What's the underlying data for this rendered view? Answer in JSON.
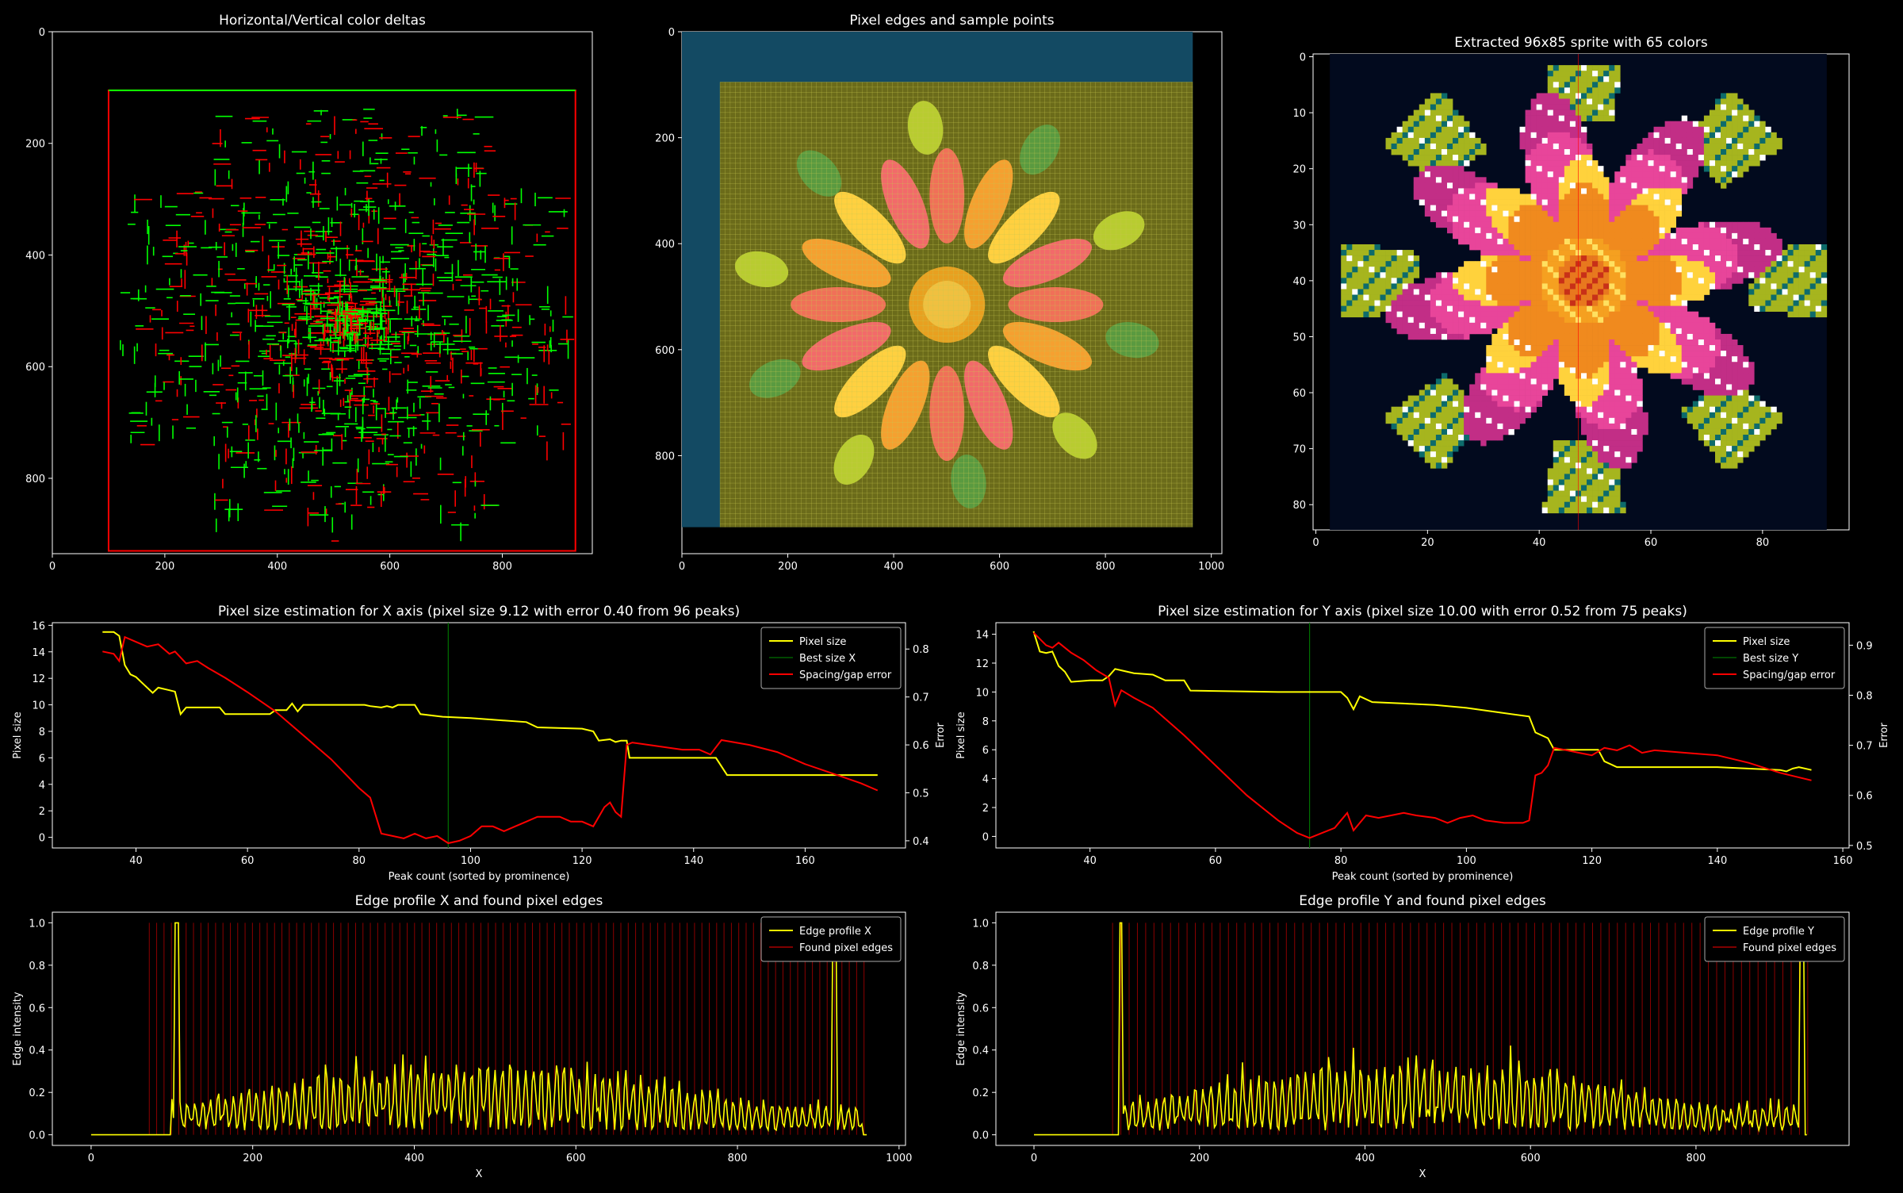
{
  "colors": {
    "background": "#000000",
    "axis": "#ffffff",
    "yellow": "#ffff00",
    "red": "#ff0000",
    "green": "#00ff00",
    "dark_green": "#007000",
    "teal_bg": "#134a63",
    "olive_grid": "#6b6b1a",
    "sprite_bg": "#020a1e",
    "leaf": "#a6b51e",
    "leaf_dark": "#0d6b6b",
    "petal_pink": "#e8459a",
    "petal_orange": "#f08a1e",
    "petal_yellow": "#ffd23c",
    "center": "#e8781e",
    "highlight": "#ffffff"
  },
  "chart_data": [
    {
      "id": "deltas",
      "type": "image",
      "title": "Horizontal/Vertical color deltas",
      "x_ticks": [
        0,
        200,
        400,
        600,
        800
      ],
      "y_ticks": [
        0,
        200,
        400,
        600,
        800
      ],
      "xlim": [
        0,
        960
      ],
      "ylim": [
        0,
        935
      ],
      "frame_rect_data": [
        100,
        105,
        930,
        930
      ]
    },
    {
      "id": "edges",
      "type": "image",
      "title": "Pixel edges and sample points",
      "x_ticks": [
        0,
        200,
        400,
        600,
        800,
        1000
      ],
      "y_ticks": [
        0,
        200,
        400,
        600,
        800
      ],
      "xlim": [
        0,
        1020
      ],
      "ylim": [
        0,
        985
      ],
      "teal_rect_data": [
        0,
        0,
        965,
        935
      ],
      "grid_rect_data": [
        72,
        95,
        965,
        935
      ]
    },
    {
      "id": "sprite",
      "type": "image",
      "title": "Extracted 96x85 sprite with 65 colors",
      "x_ticks": [
        0,
        20,
        40,
        60,
        80
      ],
      "y_ticks": [
        0,
        10,
        20,
        30,
        40,
        50,
        60,
        70,
        80
      ],
      "xlim": [
        0,
        96
      ],
      "ylim": [
        0,
        85
      ],
      "sprite_rect_data": [
        3,
        0,
        92,
        85
      ],
      "center_line_x": 47.5
    },
    {
      "id": "psx",
      "type": "line",
      "title": "Pixel size estimation for X axis (pixel size 9.12 with error 0.40 from 96 peaks)",
      "xlabel": "Peak count (sorted by prominence)",
      "ylabel": "Pixel size",
      "ylabel2": "Error",
      "xlim": [
        25,
        178
      ],
      "ylim": [
        -0.8,
        16.2
      ],
      "y2lim": [
        0.385,
        0.855
      ],
      "x_ticks": [
        40,
        60,
        80,
        100,
        120,
        140,
        160
      ],
      "y_ticks": [
        0,
        2,
        4,
        6,
        8,
        10,
        12,
        14,
        16
      ],
      "y2_ticks": [
        0.4,
        0.5,
        0.6,
        0.7,
        0.8
      ],
      "legend": [
        "Pixel size",
        "Best size X",
        "Spacing/gap error"
      ],
      "legend_position": "upper right",
      "best_x": 96,
      "series": [
        {
          "name": "Pixel size",
          "axis": "left",
          "color": "yellow",
          "points": [
            [
              34,
              15.5
            ],
            [
              36,
              15.5
            ],
            [
              37,
              15.2
            ],
            [
              38,
              13
            ],
            [
              39,
              12.3
            ],
            [
              40,
              12.1
            ],
            [
              41,
              11.7
            ],
            [
              43,
              10.9
            ],
            [
              44,
              11.3
            ],
            [
              46,
              11.1
            ],
            [
              47,
              11
            ],
            [
              48,
              9.3
            ],
            [
              49,
              9.8
            ],
            [
              55,
              9.8
            ],
            [
              56,
              9.3
            ],
            [
              64,
              9.3
            ],
            [
              65,
              9.6
            ],
            [
              67,
              9.6
            ],
            [
              68,
              10.1
            ],
            [
              69,
              9.5
            ],
            [
              70,
              10
            ],
            [
              81,
              10
            ],
            [
              82,
              9.9
            ],
            [
              84,
              9.8
            ],
            [
              85,
              9.9
            ],
            [
              86,
              9.8
            ],
            [
              87,
              10
            ],
            [
              90,
              10
            ],
            [
              91,
              9.3
            ],
            [
              95,
              9.1
            ],
            [
              100,
              9
            ],
            [
              110,
              8.7
            ],
            [
              112,
              8.3
            ],
            [
              120,
              8.2
            ],
            [
              122,
              8
            ],
            [
              123,
              7.3
            ],
            [
              125,
              7.4
            ],
            [
              126,
              7.2
            ],
            [
              127,
              7.3
            ],
            [
              128,
              7.3
            ],
            [
              128.5,
              6
            ],
            [
              144,
              6
            ],
            [
              146,
              4.7
            ],
            [
              173,
              4.7
            ]
          ]
        },
        {
          "name": "Spacing/gap error",
          "axis": "right",
          "color": "red",
          "points": [
            [
              34,
              0.795
            ],
            [
              36,
              0.79
            ],
            [
              37,
              0.775
            ],
            [
              38,
              0.825
            ],
            [
              40,
              0.815
            ],
            [
              42,
              0.805
            ],
            [
              44,
              0.81
            ],
            [
              46,
              0.79
            ],
            [
              47,
              0.795
            ],
            [
              49,
              0.77
            ],
            [
              51,
              0.775
            ],
            [
              53,
              0.76
            ],
            [
              56,
              0.74
            ],
            [
              60,
              0.71
            ],
            [
              65,
              0.67
            ],
            [
              70,
              0.62
            ],
            [
              75,
              0.57
            ],
            [
              80,
              0.51
            ],
            [
              82,
              0.49
            ],
            [
              84,
              0.415
            ],
            [
              86,
              0.41
            ],
            [
              88,
              0.405
            ],
            [
              90,
              0.415
            ],
            [
              92,
              0.405
            ],
            [
              94,
              0.41
            ],
            [
              96,
              0.395
            ],
            [
              98,
              0.4
            ],
            [
              100,
              0.41
            ],
            [
              102,
              0.43
            ],
            [
              104,
              0.43
            ],
            [
              106,
              0.42
            ],
            [
              108,
              0.43
            ],
            [
              110,
              0.44
            ],
            [
              112,
              0.45
            ],
            [
              114,
              0.45
            ],
            [
              116,
              0.45
            ],
            [
              118,
              0.44
            ],
            [
              120,
              0.44
            ],
            [
              122,
              0.43
            ],
            [
              124,
              0.47
            ],
            [
              125,
              0.48
            ],
            [
              126,
              0.46
            ],
            [
              127,
              0.45
            ],
            [
              128,
              0.6
            ],
            [
              129,
              0.605
            ],
            [
              132,
              0.6
            ],
            [
              135,
              0.595
            ],
            [
              138,
              0.59
            ],
            [
              141,
              0.59
            ],
            [
              143,
              0.58
            ],
            [
              145,
              0.61
            ],
            [
              150,
              0.6
            ],
            [
              155,
              0.585
            ],
            [
              160,
              0.56
            ],
            [
              165,
              0.54
            ],
            [
              170,
              0.52
            ],
            [
              173,
              0.505
            ]
          ]
        }
      ]
    },
    {
      "id": "psy",
      "type": "line",
      "title": "Pixel size estimation for Y axis (pixel size 10.00 with error 0.52 from 75 peaks)",
      "xlabel": "Peak count (sorted by prominence)",
      "ylabel": "Pixel size",
      "ylabel2": "Error",
      "xlim": [
        25,
        161
      ],
      "ylim": [
        -0.8,
        14.8
      ],
      "y2lim": [
        0.495,
        0.945
      ],
      "x_ticks": [
        40,
        60,
        80,
        100,
        120,
        140,
        160
      ],
      "y_ticks": [
        0,
        2,
        4,
        6,
        8,
        10,
        12,
        14
      ],
      "y2_ticks": [
        0.5,
        0.6,
        0.7,
        0.8,
        0.9
      ],
      "legend": [
        "Pixel size",
        "Best size Y",
        "Spacing/gap error"
      ],
      "legend_position": "upper right",
      "best_x": 75,
      "series": [
        {
          "name": "Pixel size",
          "axis": "left",
          "color": "yellow",
          "points": [
            [
              31,
              14.2
            ],
            [
              32,
              12.8
            ],
            [
              33,
              12.7
            ],
            [
              34,
              12.8
            ],
            [
              35,
              11.8
            ],
            [
              36,
              11.4
            ],
            [
              37,
              10.7
            ],
            [
              40,
              10.8
            ],
            [
              42,
              10.8
            ],
            [
              43,
              11.1
            ],
            [
              44,
              11.6
            ],
            [
              45,
              11.5
            ],
            [
              47,
              11.3
            ],
            [
              50,
              11.2
            ],
            [
              52,
              10.8
            ],
            [
              55,
              10.8
            ],
            [
              56,
              10.1
            ],
            [
              70,
              10
            ],
            [
              80,
              10
            ],
            [
              81,
              9.6
            ],
            [
              82,
              8.8
            ],
            [
              83,
              9.7
            ],
            [
              85,
              9.3
            ],
            [
              90,
              9.2
            ],
            [
              95,
              9.1
            ],
            [
              100,
              8.9
            ],
            [
              105,
              8.6
            ],
            [
              110,
              8.3
            ],
            [
              111,
              7.2
            ],
            [
              113,
              6.8
            ],
            [
              114,
              6
            ],
            [
              121,
              6
            ],
            [
              122,
              5.2
            ],
            [
              124,
              4.8
            ],
            [
              140,
              4.8
            ],
            [
              150,
              4.6
            ],
            [
              151,
              4.5
            ],
            [
              152,
              4.7
            ],
            [
              153,
              4.8
            ],
            [
              155,
              4.6
            ]
          ]
        },
        {
          "name": "Spacing/gap error",
          "axis": "right",
          "color": "red",
          "points": [
            [
              31,
              0.925
            ],
            [
              33,
              0.9
            ],
            [
              34,
              0.895
            ],
            [
              35,
              0.905
            ],
            [
              37,
              0.885
            ],
            [
              39,
              0.87
            ],
            [
              41,
              0.85
            ],
            [
              43,
              0.835
            ],
            [
              44,
              0.78
            ],
            [
              45,
              0.81
            ],
            [
              47,
              0.795
            ],
            [
              50,
              0.775
            ],
            [
              55,
              0.72
            ],
            [
              60,
              0.66
            ],
            [
              65,
              0.6
            ],
            [
              70,
              0.55
            ],
            [
              73,
              0.525
            ],
            [
              75,
              0.515
            ],
            [
              77,
              0.525
            ],
            [
              79,
              0.535
            ],
            [
              80,
              0.55
            ],
            [
              81,
              0.565
            ],
            [
              82,
              0.53
            ],
            [
              84,
              0.56
            ],
            [
              86,
              0.555
            ],
            [
              88,
              0.56
            ],
            [
              90,
              0.565
            ],
            [
              92,
              0.56
            ],
            [
              95,
              0.555
            ],
            [
              97,
              0.545
            ],
            [
              99,
              0.555
            ],
            [
              101,
              0.56
            ],
            [
              103,
              0.55
            ],
            [
              106,
              0.545
            ],
            [
              109,
              0.545
            ],
            [
              110,
              0.55
            ],
            [
              111,
              0.64
            ],
            [
              112,
              0.645
            ],
            [
              113,
              0.66
            ],
            [
              114,
              0.695
            ],
            [
              116,
              0.69
            ],
            [
              118,
              0.685
            ],
            [
              120,
              0.68
            ],
            [
              122,
              0.695
            ],
            [
              124,
              0.69
            ],
            [
              126,
              0.7
            ],
            [
              128,
              0.685
            ],
            [
              130,
              0.69
            ],
            [
              135,
              0.685
            ],
            [
              140,
              0.68
            ],
            [
              145,
              0.665
            ],
            [
              150,
              0.645
            ],
            [
              155,
              0.63
            ]
          ]
        }
      ]
    },
    {
      "id": "epx",
      "type": "line",
      "title": "Edge profile X and found pixel edges",
      "xlabel": "X",
      "ylabel": "Edge intensity",
      "xlim": [
        -48,
        1008
      ],
      "ylim": [
        -0.05,
        1.05
      ],
      "x_ticks": [
        0,
        200,
        400,
        600,
        800,
        1000
      ],
      "y_ticks": [
        0.0,
        0.2,
        0.4,
        0.6,
        0.8,
        1.0
      ],
      "legend": [
        "Edge profile X",
        "Found pixel edges"
      ],
      "legend_position": "upper right",
      "profile_start": 100,
      "profile_end": 955,
      "profile_span": 960,
      "spikes": [
        [
          106,
          1.0
        ],
        [
          920,
          0.97
        ]
      ],
      "edge_lines": {
        "start": 72,
        "end": 965,
        "step": 9.12
      },
      "series": [
        {
          "name": "Edge profile X",
          "color": "yellow"
        },
        {
          "name": "Found pixel edges",
          "color": "red"
        }
      ]
    },
    {
      "id": "epy",
      "type": "line",
      "title": "Edge profile Y and found pixel edges",
      "xlabel": "X",
      "ylabel": "Edge intensity",
      "xlim": [
        -46,
        985
      ],
      "ylim": [
        -0.05,
        1.05
      ],
      "x_ticks": [
        0,
        200,
        400,
        600,
        800
      ],
      "y_ticks": [
        0.0,
        0.2,
        0.4,
        0.6,
        0.8,
        1.0
      ],
      "legend": [
        "Edge profile Y",
        "Found pixel edges"
      ],
      "legend_position": "upper right",
      "profile_start": 103,
      "profile_end": 930,
      "profile_span": 935,
      "spikes": [
        [
          105,
          1.0
        ],
        [
          928,
          0.97
        ]
      ],
      "edge_lines": {
        "start": 95,
        "end": 935,
        "step": 10.0
      },
      "series": [
        {
          "name": "Edge profile Y",
          "color": "yellow"
        },
        {
          "name": "Found pixel edges",
          "color": "red"
        }
      ]
    }
  ]
}
